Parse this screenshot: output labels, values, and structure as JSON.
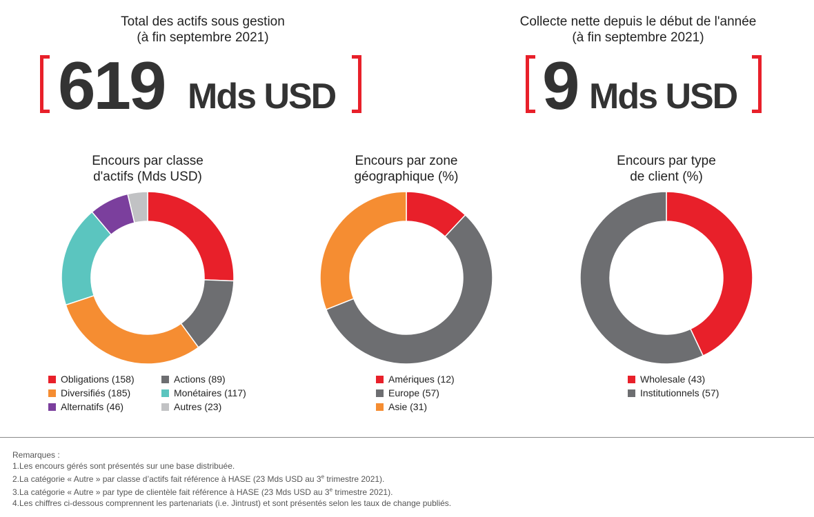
{
  "kpis": [
    {
      "title_line1": "Total des actifs sous gestion",
      "title_line2": "(à fin septembre 2021)",
      "value": "619",
      "unit": "Mds USD"
    },
    {
      "title_line1": "Collecte nette depuis le début de l'année",
      "title_line2": "(à fin septembre 2021)",
      "value": "9",
      "unit": "Mds USD"
    }
  ],
  "chart_data": [
    {
      "type": "pie",
      "title": "Encours par classe d'actifs (Mds USD)",
      "title_line1": "Encours par classe",
      "title_line2": "d'actifs (Mds USD)",
      "slices": [
        {
          "label": "Obligations (158)",
          "value": 158,
          "color": "#e8202a"
        },
        {
          "label": "Actions (89)",
          "value": 89,
          "color": "#6d6e71"
        },
        {
          "label": "Diversifiés (185)",
          "value": 185,
          "color": "#f58d32"
        },
        {
          "label": "Monétaires (117)",
          "value": 117,
          "color": "#5bc5bf"
        },
        {
          "label": "Alternatifs (46)",
          "value": 46,
          "color": "#7b3f9d"
        },
        {
          "label": "Autres (23)",
          "value": 23,
          "color": "#c1c2c4"
        }
      ]
    },
    {
      "type": "pie",
      "title": "Encours par zone géographique (%)",
      "title_line1": "Encours par zone",
      "title_line2": "géographique (%)",
      "slices": [
        {
          "label": "Amériques (12)",
          "value": 12,
          "color": "#e8202a"
        },
        {
          "label": "Europe (57)",
          "value": 57,
          "color": "#6d6e71"
        },
        {
          "label": "Asie (31)",
          "value": 31,
          "color": "#f58d32"
        }
      ]
    },
    {
      "type": "pie",
      "title": "Encours par type de client (%)",
      "title_line1": "Encours par type",
      "title_line2": "de client (%)",
      "slices": [
        {
          "label": "Wholesale (43)",
          "value": 43,
          "color": "#e8202a"
        },
        {
          "label": "Institutionnels (57)",
          "value": 57,
          "color": "#6d6e71"
        }
      ]
    }
  ],
  "notes": {
    "heading": "Remarques :",
    "n1": "1.Les encours gérés sont présentés sur une base distribuée.",
    "n2a": "2.La catégorie « Autre » par classe d’actifs fait référence à HASE (23 Mds USD au 3",
    "n2sup": "e",
    "n2b": " trimestre 2021).",
    "n3a": "3.La catégorie « Autre » par type de clientèle fait référence à HASE (23 Mds USD au 3",
    "n3sup": "e",
    "n3b": " trimestre 2021).",
    "n4": "4.Les chiffres ci-dessous comprennent les partenariats (i.e. Jintrust) et sont présentés selon les taux de change publiés."
  }
}
